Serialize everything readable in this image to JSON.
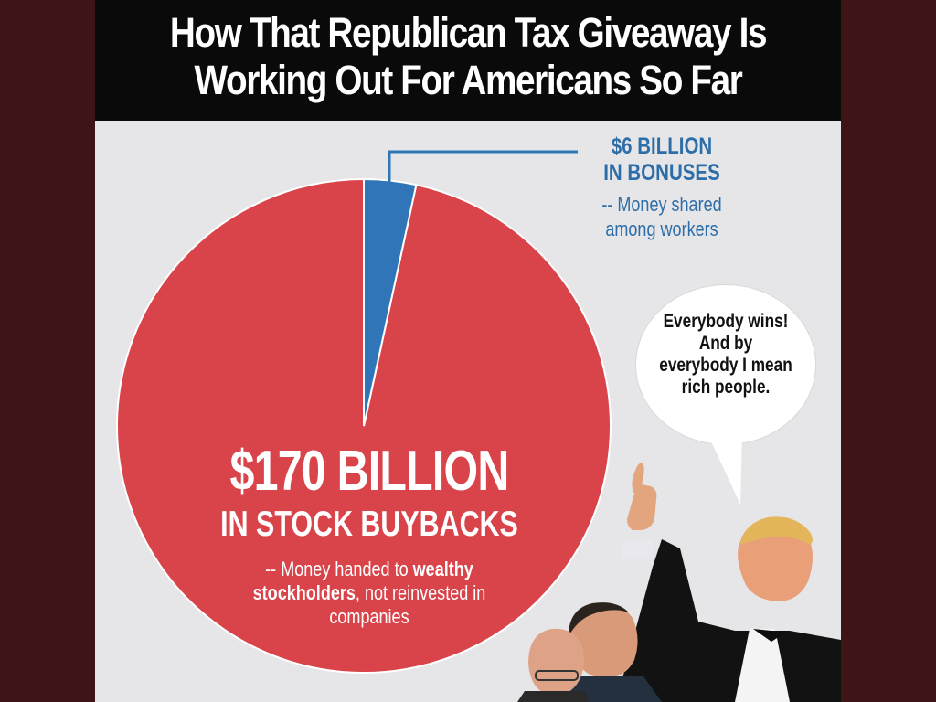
{
  "headline": {
    "line1": "How That Republican Tax Giveaway Is",
    "line2": "Working Out For Americans So Far"
  },
  "chart_data": {
    "type": "pie",
    "slices": [
      {
        "value": 170,
        "value_label": "$170 BILLION",
        "label": "IN STOCK BUYBACKS",
        "note_parts": [
          "-- Money handed to ",
          "wealthy",
          " stockholders",
          ", not reinvested in companies"
        ],
        "color": "#d9434a"
      },
      {
        "value": 6,
        "value_label": "$6 BILLION",
        "label": "IN BONUSES",
        "note": "-- Money shared among workers",
        "color": "#2f75b8"
      }
    ],
    "unit": "billion USD"
  },
  "speech_bubble": {
    "text": "Everybody wins! And by everybody I mean rich people."
  },
  "colors": {
    "page_bg": "#3d1516",
    "panel_bg": "#e6e6e8",
    "title_bg": "#0a0a0a",
    "buybacks_red": "#d9434a",
    "bonuses_blue": "#2f75b8",
    "callout_text": "#2e6ea8"
  },
  "illustration": {
    "description_icons": [
      "thumbs-up-figure-icon",
      "person-photo-icon"
    ]
  }
}
